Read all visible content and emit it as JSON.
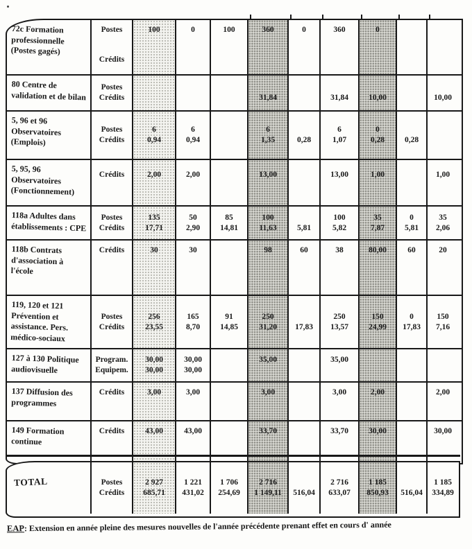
{
  "document": {
    "footer": {
      "abbr": "EAP",
      "text": ": Extension en année pleine des mesures nouvelles de l'année précédente prenant effet en cours d' année"
    }
  },
  "colors": {
    "ink": "#181818",
    "shade_light": "#f4f4f0",
    "shade_medium": "#dbdbd5"
  },
  "table": {
    "shaded_data_columns_light": [
      0
    ],
    "shaded_data_columns_medium": [
      3,
      6
    ],
    "rows": [
      {
        "label": "72c  Formation\nprofessionnelle\n(Postes gagés)",
        "sublabels": [
          "Postes",
          "Crédits"
        ],
        "lines": [
          [
            "100",
            "0",
            "100",
            "360",
            "0",
            "360",
            "0",
            "",
            ""
          ],
          [
            "",
            "",
            "",
            "",
            "",
            "",
            "",
            "",
            ""
          ]
        ]
      },
      {
        "label": "80  Centre de\nvalidation et de bilan",
        "sublabels": [
          "Postes",
          "Crédits"
        ],
        "lines": [
          [
            "",
            "",
            "",
            "",
            "",
            "",
            "",
            "",
            ""
          ],
          [
            "",
            "",
            "",
            "31,84",
            "",
            "31,84",
            "10,00",
            "",
            "10,00"
          ]
        ]
      },
      {
        "label": "5, 96 et 96\nObservatoires\n(Emplois)",
        "sublabels": [
          "Postes",
          "Crédits"
        ],
        "lines": [
          [
            "6",
            "6",
            "",
            "6",
            "",
            "6",
            "0",
            "",
            ""
          ],
          [
            "0,94",
            "0,94",
            "",
            "1,35",
            "0,28",
            "1,07",
            "0,28",
            "0,28",
            ""
          ]
        ]
      },
      {
        "label": "5, 95, 96\nObservatoires\n(Fonctionnement)",
        "sublabels": [
          "Crédits"
        ],
        "lines": [
          [
            "2,00",
            "2,00",
            "",
            "13,00",
            "",
            "13,00",
            "1,00",
            "",
            "1,00"
          ]
        ]
      },
      {
        "label": "118a  Adultes dans\nétablissements : CPE",
        "sublabels": [
          "Postes",
          "Crédits"
        ],
        "lines": [
          [
            "135",
            "50",
            "85",
            "100",
            "",
            "100",
            "35",
            "0",
            "35"
          ],
          [
            "17,71",
            "2,90",
            "14,81",
            "11,63",
            "5,81",
            "5,82",
            "7,87",
            "5,81",
            "2,06"
          ]
        ]
      },
      {
        "label": "118b  Contrats\nd'association à\nl'école",
        "sublabels": [
          "Crédits"
        ],
        "lines": [
          [
            "30",
            "30",
            "",
            "98",
            "60",
            "38",
            "80,00",
            "60",
            "20"
          ]
        ]
      },
      {
        "label": "119, 120 et 121\nPrévention et\nassistance. Pers.\nmédico-sociaux",
        "sublabels": [
          "Postes",
          "Crédits"
        ],
        "lines": [
          [
            "256",
            "165",
            "91",
            "250",
            "",
            "250",
            "150",
            "0",
            "150"
          ],
          [
            "23,55",
            "8,70",
            "14,85",
            "31,20",
            "17,83",
            "13,57",
            "24,99",
            "17,83",
            "7,16"
          ]
        ]
      },
      {
        "label": "127 à 130  Politique\naudiovisuelle",
        "sublabels": [
          "Program.",
          "Equipem."
        ],
        "lines": [
          [
            "30,00",
            "30,00",
            "",
            "35,00",
            "",
            "35,00",
            "",
            "",
            ""
          ],
          [
            "30,00",
            "30,00",
            "",
            "",
            "",
            "",
            "",
            "",
            ""
          ]
        ]
      },
      {
        "label": "137  Diffusion des\nprogrammes",
        "sublabels": [
          "Crédits"
        ],
        "lines": [
          [
            "3,00",
            "3,00",
            "",
            "3,00",
            "",
            "3,00",
            "2,00",
            "",
            "2,00"
          ]
        ]
      },
      {
        "label": "149 Formation\ncontinue",
        "sublabels": [
          "Crédits"
        ],
        "lines": [
          [
            "43,00",
            "43,00",
            "",
            "33,70",
            "",
            "33,70",
            "30,00",
            "",
            "30,00"
          ]
        ]
      }
    ],
    "total": {
      "label": "TOTAL",
      "sublabels": [
        "Postes",
        "Crédits"
      ],
      "lines": [
        [
          "2 927",
          "1 221",
          "1 706",
          "2 716",
          "",
          "2 716",
          "1 185",
          "",
          "1 185"
        ],
        [
          "685,71",
          "431,02",
          "254,69",
          "1 149,11",
          "516,04",
          "633,07",
          "850,93",
          "516,04",
          "334,89"
        ]
      ]
    }
  }
}
